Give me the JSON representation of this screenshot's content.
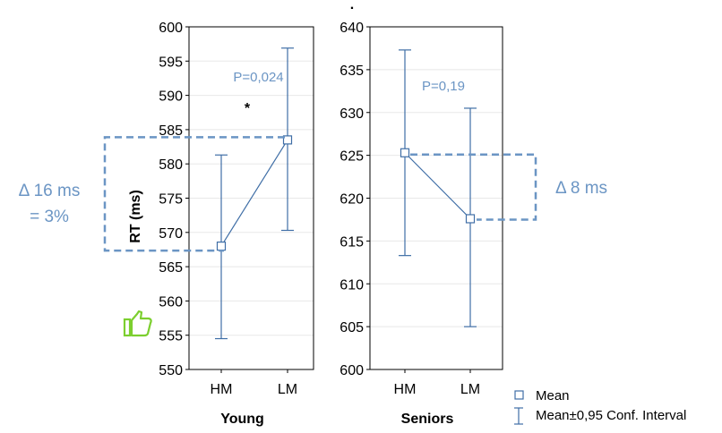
{
  "colors": {
    "series": "#3f6ea6",
    "annotation": "#6b95c4",
    "axis": "#000000",
    "grid": "#e8e8e8",
    "thumb": "#7ccf2f"
  },
  "top_mark": ".",
  "chart_data": [
    {
      "type": "line",
      "title": "Young",
      "xlabel": "Young",
      "ylabel": "RT (ms)",
      "categories": [
        "HM",
        "LM"
      ],
      "series": [
        {
          "name": "Mean",
          "values": [
            568,
            583.5
          ],
          "ci_low": [
            554.5,
            570.3
          ],
          "ci_high": [
            581.3,
            596.9
          ]
        }
      ],
      "ylim": [
        550,
        600
      ],
      "yticks": [
        550,
        555,
        560,
        565,
        570,
        575,
        580,
        585,
        590,
        595,
        600
      ],
      "grid": true,
      "annotations": {
        "p_value": "P=0,024",
        "significance": "*",
        "delta_line1": "Δ 16 ms",
        "delta_line2": "= 3%",
        "icon": "thumbs-up-icon"
      }
    },
    {
      "type": "line",
      "title": "Seniors",
      "xlabel": "Seniors",
      "ylabel": "",
      "categories": [
        "HM",
        "LM"
      ],
      "series": [
        {
          "name": "Mean",
          "values": [
            625.3,
            617.6
          ],
          "ci_low": [
            613.3,
            605
          ],
          "ci_high": [
            637.3,
            630.5
          ]
        }
      ],
      "ylim": [
        600,
        640
      ],
      "yticks": [
        600,
        605,
        610,
        615,
        620,
        625,
        630,
        635,
        640
      ],
      "grid": true,
      "annotations": {
        "p_value": "P=0,19",
        "delta_line1": "Δ 8 ms"
      }
    }
  ],
  "legend": {
    "position": "bottom-right",
    "items": [
      {
        "label": "Mean",
        "symbol": "square"
      },
      {
        "label": "Mean±0,95 Conf. Interval",
        "symbol": "errorbar"
      }
    ]
  }
}
